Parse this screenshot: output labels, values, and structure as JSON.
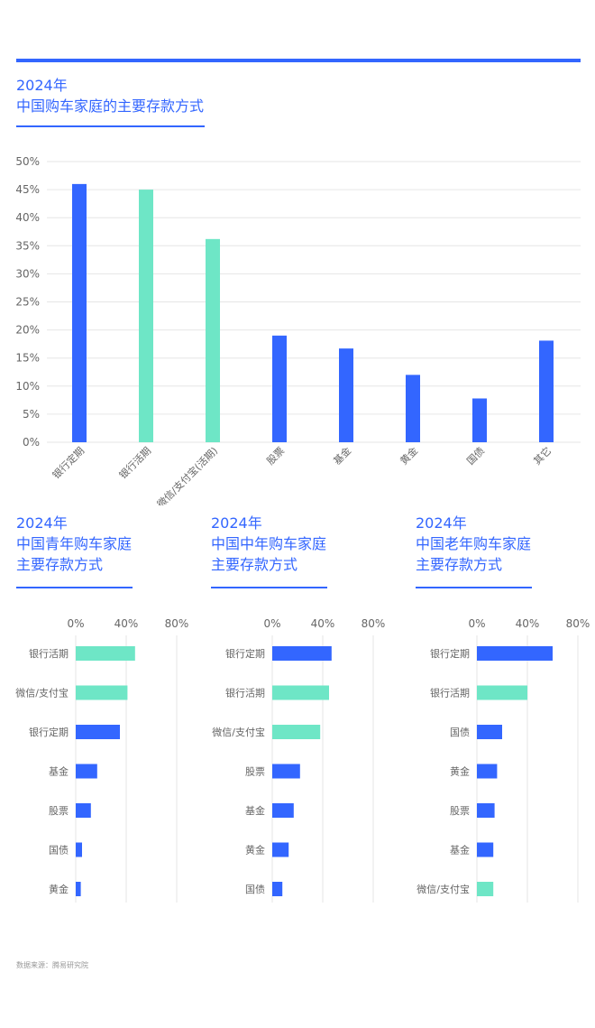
{
  "colors": {
    "accent": "#3366ff",
    "blue": "#3366ff",
    "mint": "#6ee6c6",
    "grid": "#e6e6e6",
    "text": "#666666"
  },
  "main": {
    "title_line1": "2024年",
    "title_line2": "中国购车家庭的主要存款方式"
  },
  "panels": [
    {
      "title_line1": "2024年",
      "title_line2": "中国青年购车家庭",
      "title_line3": "主要存款方式"
    },
    {
      "title_line1": "2024年",
      "title_line2": "中国中年购车家庭",
      "title_line3": "主要存款方式"
    },
    {
      "title_line1": "2024年",
      "title_line2": "中国老年购车家庭",
      "title_line3": "主要存款方式"
    }
  ],
  "source": "数据来源：腾易研究院",
  "chart_data": [
    {
      "type": "bar",
      "title": "2024年 中国购车家庭的主要存款方式",
      "categories": [
        "银行定期",
        "银行活期",
        "微信/支付宝(活期)",
        "股票",
        "基金",
        "黄金",
        "国债",
        "其它"
      ],
      "values": [
        46,
        45,
        36.2,
        19,
        16.7,
        12,
        7.8,
        18.1
      ],
      "colors": [
        "blue",
        "mint",
        "mint",
        "blue",
        "blue",
        "blue",
        "blue",
        "blue"
      ],
      "yticks": [
        "0%",
        "5%",
        "10%",
        "15%",
        "20%",
        "25%",
        "30%",
        "35%",
        "40%",
        "45%",
        "50%"
      ],
      "ylim": [
        0,
        50
      ],
      "unit": "%",
      "grid": true
    },
    {
      "type": "bar",
      "orientation": "horizontal",
      "title": "2024年 中国青年购车家庭 主要存款方式",
      "categories": [
        "银行活期",
        "微信/支付宝",
        "银行定期",
        "基金",
        "股票",
        "国债",
        "黄金"
      ],
      "values": [
        47,
        41,
        35,
        17,
        12,
        5,
        4
      ],
      "colors": [
        "mint",
        "mint",
        "blue",
        "blue",
        "blue",
        "blue",
        "blue"
      ],
      "xticks": [
        "0%",
        "40%",
        "80%"
      ],
      "xlim": [
        0,
        80
      ],
      "unit": "%"
    },
    {
      "type": "bar",
      "orientation": "horizontal",
      "title": "2024年 中国中年购车家庭 主要存款方式",
      "categories": [
        "银行定期",
        "银行活期",
        "微信/支付宝",
        "股票",
        "基金",
        "黄金",
        "国债"
      ],
      "values": [
        47,
        45,
        38,
        22,
        17,
        13,
        8
      ],
      "colors": [
        "blue",
        "mint",
        "mint",
        "blue",
        "blue",
        "blue",
        "blue"
      ],
      "xticks": [
        "0%",
        "40%",
        "80%"
      ],
      "xlim": [
        0,
        80
      ],
      "unit": "%"
    },
    {
      "type": "bar",
      "orientation": "horizontal",
      "title": "2024年 中国老年购车家庭 主要存款方式",
      "categories": [
        "银行定期",
        "银行活期",
        "国债",
        "黄金",
        "股票",
        "基金",
        "微信/支付宝"
      ],
      "values": [
        60,
        40,
        20,
        16,
        14,
        13,
        13
      ],
      "colors": [
        "blue",
        "mint",
        "blue",
        "blue",
        "blue",
        "blue",
        "mint"
      ],
      "xticks": [
        "0%",
        "40%",
        "80%"
      ],
      "xlim": [
        0,
        80
      ],
      "unit": "%"
    }
  ]
}
